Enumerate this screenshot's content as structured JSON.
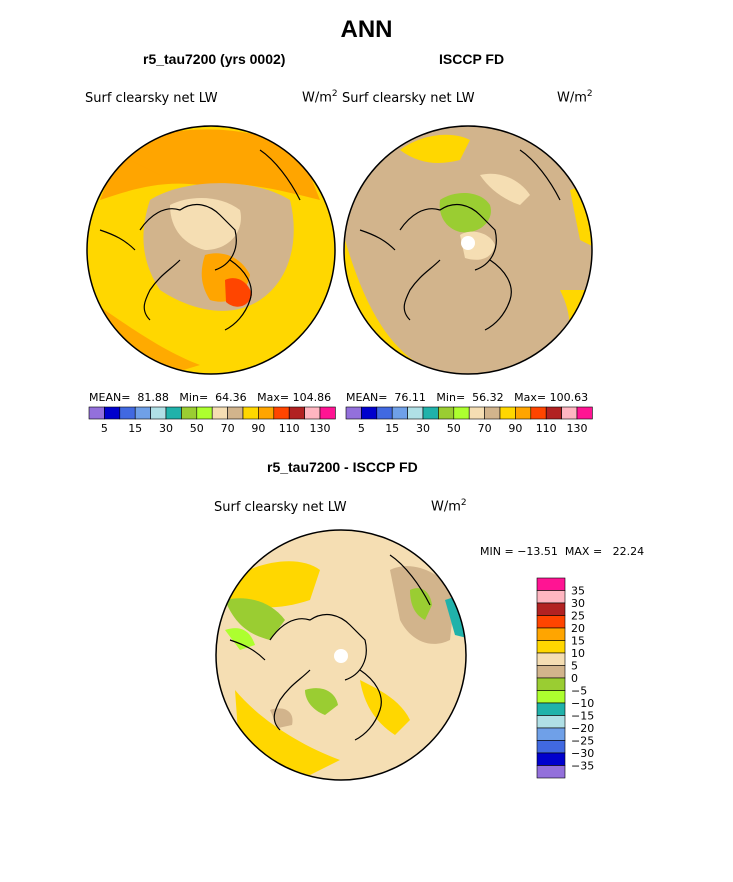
{
  "title": "ANN",
  "panels": [
    {
      "title": "r5_tau7200 (yrs 0002)",
      "field_label": "Surf clearsky net LW",
      "units_base": "W/m",
      "units_exp": "2",
      "stats": {
        "mean_label": "MEAN=",
        "mean": "81.88",
        "min_label": "Min=",
        "min": "64.36",
        "max_label": "Max=",
        "max": "104.86"
      }
    },
    {
      "title": "ISCCP FD",
      "field_label": "Surf clearsky net LW",
      "units_base": "W/m",
      "units_exp": "2",
      "stats": {
        "mean_label": "MEAN=",
        "mean": "76.11",
        "min_label": "Min=",
        "min": "56.32",
        "max_label": "Max=",
        "max": "100.63"
      }
    }
  ],
  "colorbar_top": {
    "colors": [
      "#9370db",
      "#0000cd",
      "#4169e1",
      "#6fa0e8",
      "#b0e0e6",
      "#20b2aa",
      "#9acd32",
      "#adff2f",
      "#f5deb3",
      "#d2b48c",
      "#ffd700",
      "#ffa500",
      "#ff4500",
      "#b22222",
      "#ffb6c1",
      "#ff1493"
    ],
    "labels": [
      "5",
      "15",
      "30",
      "50",
      "70",
      "90",
      "110",
      "130"
    ]
  },
  "diff_panel": {
    "title": "r5_tau7200 - ISCCP FD",
    "field_label": "Surf clearsky net LW",
    "units_base": "W/m",
    "units_exp": "2",
    "minmax": {
      "min_label": "MIN =",
      "min": "−13.51",
      "max_label": "MAX =",
      "max": "22.24"
    }
  },
  "colorbar_diff": {
    "colors": [
      "#ff1493",
      "#ffb6c1",
      "#b22222",
      "#ff4500",
      "#ffa500",
      "#ffd700",
      "#f5deb3",
      "#d2b48c",
      "#9acd32",
      "#adff2f",
      "#20b2aa",
      "#b0e0e6",
      "#6fa0e8",
      "#4169e1",
      "#0000cd",
      "#9370db"
    ],
    "labels": [
      "35",
      "30",
      "25",
      "20",
      "15",
      "10",
      "5",
      "0",
      "−5",
      "−10",
      "−15",
      "−20",
      "−25",
      "−30",
      "−35"
    ]
  }
}
